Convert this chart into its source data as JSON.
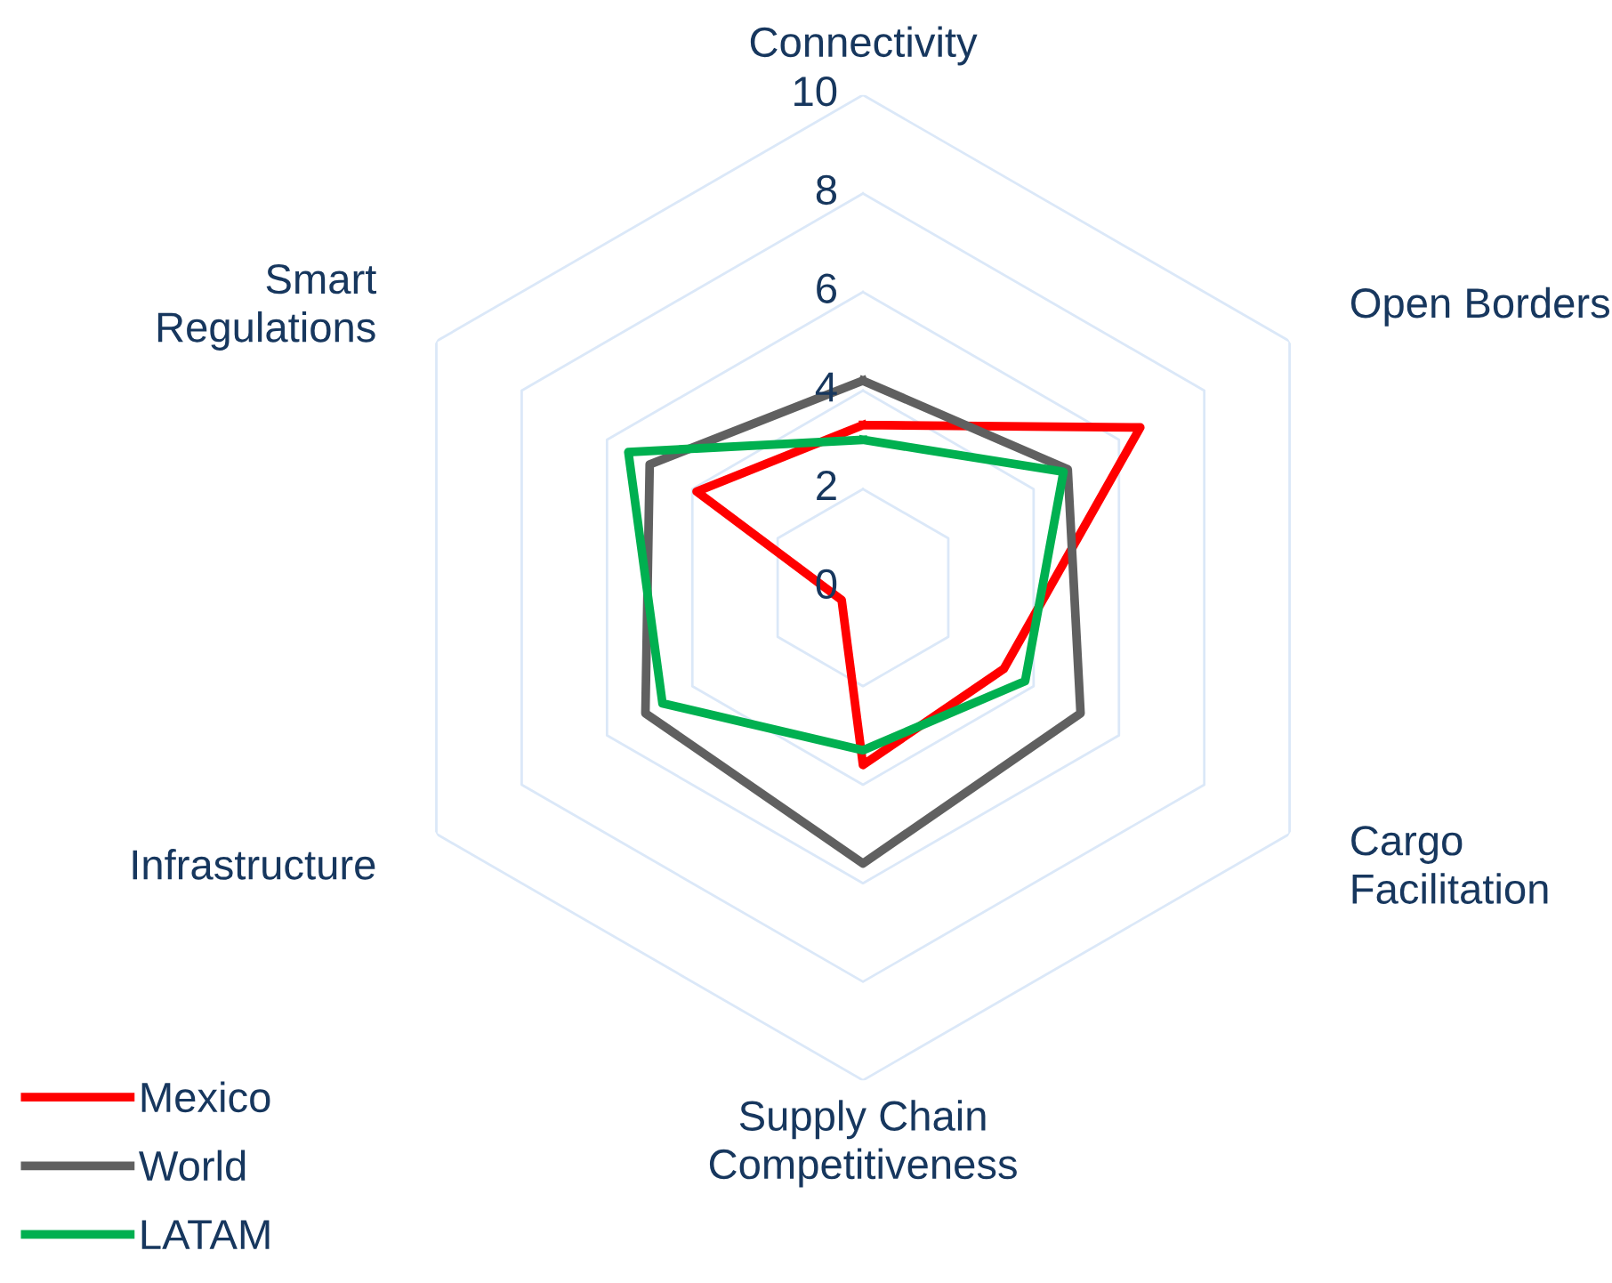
{
  "chart_data": {
    "type": "radar",
    "categories": [
      "Connectivity",
      "Open Borders",
      "Cargo\nFacilitation",
      "Supply Chain\nCompetitiveness",
      "Infrastructure",
      "Smart\nRegulations"
    ],
    "series": [
      {
        "name": "Mexico",
        "color": "#ff0000",
        "values": [
          3.3,
          6.5,
          3.3,
          3.6,
          0.5,
          3.9
        ]
      },
      {
        "name": "World",
        "color": "#606060",
        "values": [
          4.2,
          4.8,
          5.1,
          5.6,
          5.1,
          5.0
        ]
      },
      {
        "name": "LATAM",
        "color": "#00b050",
        "values": [
          3.0,
          4.7,
          3.8,
          3.3,
          4.7,
          5.5
        ]
      }
    ],
    "ylim": [
      0,
      10
    ],
    "yticks": [
      0,
      2,
      4,
      6,
      8,
      10
    ],
    "grid": true,
    "legend": "bottom left",
    "line_style": "solid",
    "marker": "none"
  }
}
